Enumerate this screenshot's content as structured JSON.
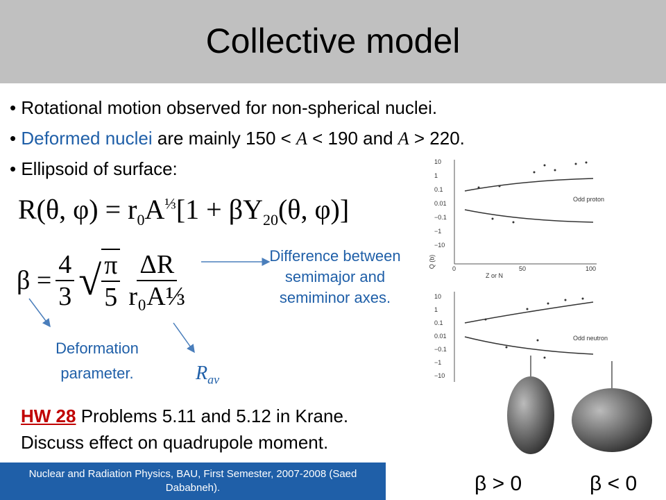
{
  "header": {
    "title": "Collective model"
  },
  "bullets": [
    {
      "parts": [
        "Rotational motion observed for non-spherical nuclei."
      ]
    },
    {
      "parts": [
        "Deformed nuclei",
        " are mainly 150 < ",
        "A",
        " < 190 and ",
        "A",
        " > 220."
      ]
    },
    {
      "parts": [
        "Ellipsoid of surface:"
      ]
    }
  ],
  "equation_radius": {
    "lhs": "R(θ, φ) = r",
    "sub0": "0",
    "a": "A",
    "exp": "⅓",
    "mid": "[1 + βY",
    "sub20": "20",
    "rhs": "(θ, φ)]"
  },
  "equation_beta": {
    "lhs": "β =",
    "num1": "4",
    "den1": "3",
    "num2": "π",
    "den2": "5",
    "num3": "ΔR",
    "den3": "r₀A⅓"
  },
  "annotations": {
    "difference": "Difference between semimajor and semiminor axes.",
    "deformation": "Deformation parameter.",
    "r_av": "R",
    "r_av_sub": "av"
  },
  "homework": {
    "label": "HW 28",
    "text": " Problems 5.11 and 5.12 in Krane.",
    "line2": "Discuss effect on quadrupole moment."
  },
  "footer": "Nuclear and Radiation Physics, BAU, First Semester, 2007-2008 (Saed Dababneh).",
  "shapes": {
    "prolate": "β > 0",
    "oblate": "β < 0"
  },
  "plots": {
    "top_label": "Odd proton",
    "bottom_label": "Odd neutron",
    "x_label": "Z or N",
    "y_label": "Q (b)",
    "y_ticks": [
      "10",
      "1",
      "0.1",
      "0.01",
      "−0.1",
      "−1",
      "−10"
    ],
    "x_ticks": [
      "0",
      "50",
      "100"
    ]
  }
}
